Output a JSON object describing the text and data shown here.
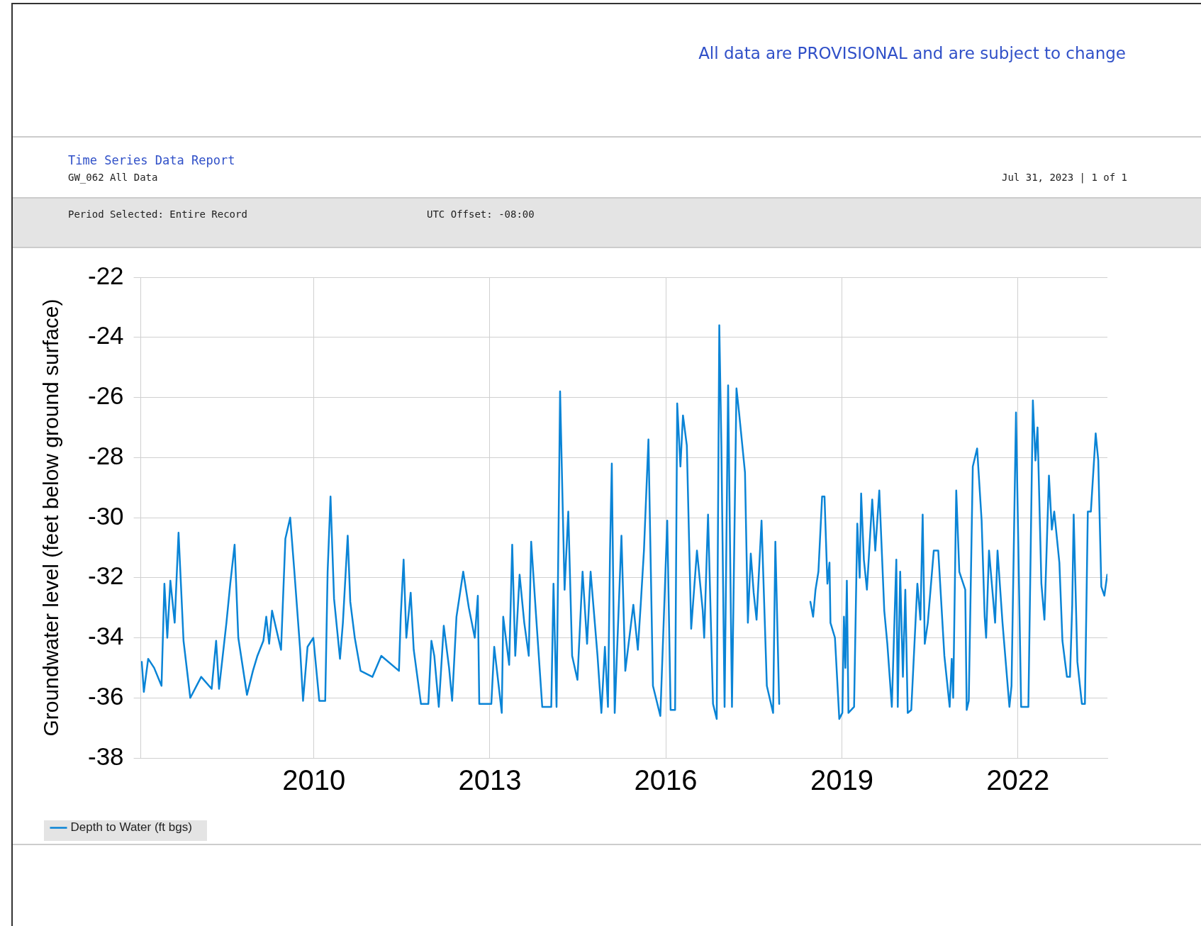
{
  "chart_data": {
    "type": "line",
    "title": "Time Series Data Report",
    "subtitle": "GW_062 All Data",
    "ylabel": "Groundwater level (feet below ground surface)",
    "annotations": [
      "All data are PROVISIONAL and are subject to change",
      "Jul 31, 2023 | 1 of 1",
      "Period Selected: Entire Record",
      "UTC Offset: -08:00"
    ],
    "xlim": [
      "2007-01-20",
      "2023-07-12"
    ],
    "xticks": [
      {
        "value": "2010-01-01",
        "label": "2010"
      },
      {
        "value": "2013-01-01",
        "label": "2013"
      },
      {
        "value": "2016-01-01",
        "label": "2016"
      },
      {
        "value": "2019-01-01",
        "label": "2019"
      },
      {
        "value": "2022-01-01",
        "label": "2022"
      }
    ],
    "ylim": [
      -38,
      -22
    ],
    "yticks": [
      -38,
      -36,
      -34,
      -32,
      -30,
      -28,
      -26,
      -24,
      -22
    ],
    "grid": true,
    "legend": "bottom left",
    "marker": "none",
    "line_style": "solid",
    "series": [
      {
        "name": "Depth to Water (ft bgs)",
        "color": "#0a84d6",
        "x": [
          "2007-01-26",
          "2007-02-08",
          "2007-03-07",
          "2007-04-13",
          "2007-05-29",
          "2007-06-16",
          "2007-07-04",
          "2007-07-23",
          "2007-08-19",
          "2007-09-12",
          "2007-10-13",
          "2007-11-24",
          "2008-01-31",
          "2008-04-05",
          "2008-05-03",
          "2008-05-21",
          "2008-07-06",
          "2008-07-30",
          "2008-08-26",
          "2008-09-18",
          "2008-11-11",
          "2008-12-18",
          "2009-01-15",
          "2009-02-21",
          "2009-03-11",
          "2009-03-29",
          "2009-04-16",
          "2009-06-11",
          "2009-07-08",
          "2009-08-07",
          "2009-09-02",
          "2009-10-08",
          "2009-10-26",
          "2009-11-23",
          "2009-12-29",
          "2010-02-04",
          "2010-03-13",
          "2010-03-28",
          "2010-04-15",
          "2010-05-07",
          "2010-06-13",
          "2010-07-01",
          "2010-07-31",
          "2010-08-16",
          "2010-09-13",
          "2010-10-19",
          "2011-01-01",
          "2011-02-25",
          "2011-06-15",
          "2011-06-26",
          "2011-07-14",
          "2011-07-31",
          "2011-08-27",
          "2011-09-15",
          "2011-10-30",
          "2011-12-15",
          "2012-01-03",
          "2012-01-21",
          "2012-02-18",
          "2012-03-20",
          "2012-04-22",
          "2012-05-11",
          "2012-06-07",
          "2012-07-19",
          "2012-08-23",
          "2012-09-29",
          "2012-10-18",
          "2012-10-27",
          "2013-01-10",
          "2013-01-28",
          "2013-03-16",
          "2013-03-25",
          "2013-05-01",
          "2013-05-20",
          "2013-06-08",
          "2013-07-05",
          "2013-08-03",
          "2013-08-31",
          "2013-09-15",
          "2013-10-16",
          "2013-11-23",
          "2014-01-18",
          "2014-02-01",
          "2014-02-20",
          "2014-03-14",
          "2014-04-11",
          "2014-05-04",
          "2014-05-28",
          "2014-06-30",
          "2014-08-01",
          "2014-08-29",
          "2014-09-20",
          "2014-11-02",
          "2014-11-26",
          "2014-12-18",
          "2015-01-06",
          "2015-01-19",
          "2015-01-30",
          "2015-02-17",
          "2015-03-31",
          "2015-04-24",
          "2015-06-13",
          "2015-07-11",
          "2015-07-30",
          "2015-08-18",
          "2015-09-15",
          "2015-10-13",
          "2015-11-28",
          "2015-12-26",
          "2016-01-10",
          "2016-01-31",
          "2016-02-28",
          "2016-03-12",
          "2016-04-01",
          "2016-04-17",
          "2016-05-11",
          "2016-06-07",
          "2016-07-13",
          "2016-08-18",
          "2016-08-27",
          "2016-09-20",
          "2016-10-21",
          "2016-11-13",
          "2016-11-29",
          "2016-12-12",
          "2017-01-01",
          "2017-01-23",
          "2017-02-16",
          "2017-03-16",
          "2017-04-01",
          "2017-05-08",
          "2017-05-26",
          "2017-06-13",
          "2017-07-01",
          "2017-07-19",
          "2017-08-19",
          "2017-09-21",
          "2017-10-30",
          "2017-11-13",
          "2017-12-07",
          "2018-03-01",
          "2018-06-19",
          "2018-07-06",
          "2018-07-21",
          "2018-08-08",
          "2018-08-31",
          "2018-09-15",
          "2018-10-03",
          "2018-10-16",
          "2018-10-22",
          "2018-11-19",
          "2018-12-16",
          "2019-01-04",
          "2019-01-14",
          "2019-01-23",
          "2019-02-01",
          "2019-02-11",
          "2019-03-18",
          "2019-04-07",
          "2019-04-22",
          "2019-05-01",
          "2019-05-18",
          "2019-06-06",
          "2019-07-09",
          "2019-07-28",
          "2019-08-22",
          "2019-09-22",
          "2019-10-11",
          "2019-11-08",
          "2019-12-06",
          "2019-12-15",
          "2019-12-30",
          "2020-01-16",
          "2020-01-31",
          "2020-02-15",
          "2020-03-08",
          "2020-04-15",
          "2020-05-04",
          "2020-05-18",
          "2020-05-31",
          "2020-06-19",
          "2020-07-26",
          "2020-08-23",
          "2020-09-30",
          "2020-11-02",
          "2020-11-15",
          "2020-11-24",
          "2020-12-13",
          "2021-01-01",
          "2021-02-07",
          "2021-02-16",
          "2021-03-01",
          "2021-03-26",
          "2021-04-22",
          "2021-05-20",
          "2021-06-08",
          "2021-06-17",
          "2021-07-05",
          "2021-08-12",
          "2021-08-27",
          "2021-09-27",
          "2021-11-09",
          "2021-11-22",
          "2021-12-20",
          "2022-01-21",
          "2022-03-07",
          "2022-04-04",
          "2022-04-20",
          "2022-05-03",
          "2022-05-27",
          "2022-06-15",
          "2022-07-13",
          "2022-07-31",
          "2022-08-15",
          "2022-09-16",
          "2022-10-05",
          "2022-11-02",
          "2022-11-21",
          "2022-12-05",
          "2022-12-14",
          "2023-01-06",
          "2023-02-03",
          "2023-02-22",
          "2023-03-12",
          "2023-03-31",
          "2023-04-30",
          "2023-05-16",
          "2023-06-04",
          "2023-06-23",
          "2023-07-11"
        ],
        "values": [
          -34.8,
          -35.8,
          -34.7,
          -35.0,
          -35.6,
          -32.2,
          -34.0,
          -32.1,
          -33.5,
          -30.5,
          -34.1,
          -36.0,
          -35.3,
          -35.7,
          -34.1,
          -35.7,
          -33.5,
          -32.2,
          -30.9,
          -34.0,
          -35.9,
          -35.1,
          -34.6,
          -34.1,
          -33.3,
          -34.2,
          -33.1,
          -34.4,
          -30.7,
          -30.0,
          -31.8,
          -34.4,
          -36.1,
          -34.3,
          -34.0,
          -36.1,
          -36.1,
          -31.8,
          -29.3,
          -32.7,
          -34.7,
          -33.5,
          -30.6,
          -32.8,
          -34.0,
          -35.1,
          -35.3,
          -34.6,
          -35.1,
          -33.3,
          -31.4,
          -34.0,
          -32.5,
          -34.4,
          -36.2,
          -36.2,
          -34.1,
          -34.6,
          -36.3,
          -33.6,
          -35.0,
          -36.1,
          -33.3,
          -31.8,
          -33.0,
          -34.0,
          -32.6,
          -36.2,
          -36.2,
          -34.3,
          -36.5,
          -33.3,
          -34.9,
          -30.9,
          -34.6,
          -31.9,
          -33.5,
          -34.6,
          -30.8,
          -33.3,
          -36.3,
          -36.3,
          -32.2,
          -36.3,
          -25.8,
          -32.4,
          -29.8,
          -34.6,
          -35.4,
          -31.8,
          -34.2,
          -31.8,
          -34.6,
          -36.5,
          -34.3,
          -36.3,
          -31.1,
          -28.2,
          -36.5,
          -30.6,
          -35.1,
          -32.9,
          -34.4,
          -32.8,
          -31.1,
          -27.4,
          -35.6,
          -36.6,
          -32.4,
          -30.1,
          -36.4,
          -36.4,
          -26.2,
          -28.3,
          -26.6,
          -27.6,
          -33.7,
          -31.1,
          -33.1,
          -34.0,
          -29.9,
          -36.2,
          -36.7,
          -23.6,
          -27.6,
          -36.3,
          -25.6,
          -36.3,
          -25.7,
          -26.5,
          -28.5,
          -33.5,
          -31.2,
          -32.5,
          -33.4,
          -30.1,
          -35.6,
          -36.5,
          -30.8,
          -36.2,
          null,
          -32.8,
          -33.3,
          -32.4,
          -31.8,
          -29.3,
          -29.3,
          -32.2,
          -31.5,
          -33.5,
          -34.0,
          -36.7,
          -36.5,
          -33.3,
          -35.0,
          -32.1,
          -36.5,
          -36.3,
          -30.2,
          -32.0,
          -29.2,
          -31.4,
          -32.4,
          -29.4,
          -31.1,
          -29.1,
          -33.1,
          -34.2,
          -36.3,
          -31.4,
          -36.3,
          -31.8,
          -35.3,
          -32.4,
          -36.5,
          -36.4,
          -32.2,
          -33.4,
          -29.9,
          -34.2,
          -33.5,
          -31.1,
          -31.1,
          -34.6,
          -36.3,
          -34.7,
          -36.0,
          -29.1,
          -31.8,
          -32.4,
          -36.4,
          -36.1,
          -28.3,
          -27.7,
          -30.1,
          -33.3,
          -34.0,
          -31.1,
          -33.5,
          -31.1,
          -33.5,
          -36.3,
          -35.6,
          -26.5,
          -36.3,
          -36.3,
          -26.1,
          -28.1,
          -27.0,
          -32.2,
          -33.4,
          -28.6,
          -30.4,
          -29.8,
          -31.5,
          -34.1,
          -35.3,
          -35.3,
          -32.9,
          -29.9,
          -34.8,
          -36.2,
          -36.2,
          -29.8,
          -29.8,
          -27.2,
          -28.1,
          -32.3,
          -32.6,
          -31.9
        ]
      }
    ]
  }
}
